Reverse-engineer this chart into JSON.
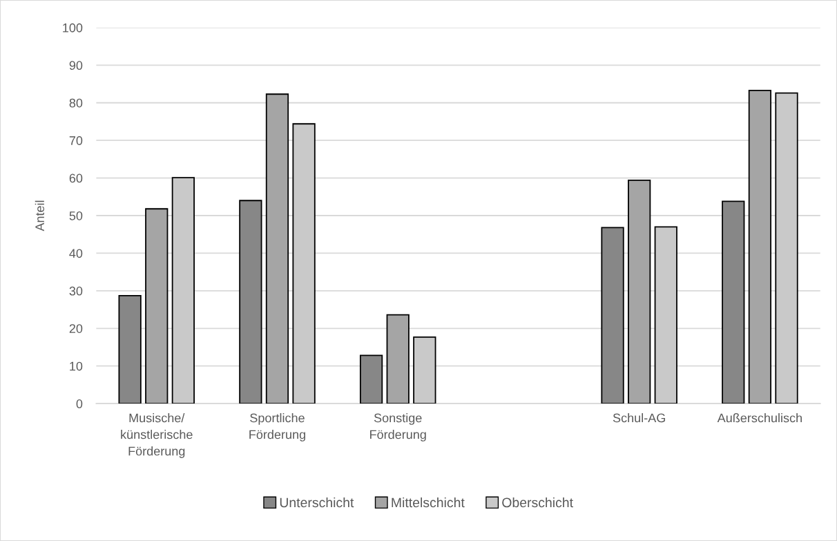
{
  "chart_data": {
    "type": "bar",
    "ylabel": "Anteil",
    "categories": [
      "Musische/\nkünstlerische\nFörderung",
      "Sportliche\nFörderung",
      "Sonstige\nFörderung",
      null,
      "Schul-AG",
      "Außerschulisch"
    ],
    "series": [
      {
        "name": "Unterschicht",
        "color": "#878787",
        "values": [
          28.7,
          54.0,
          12.8,
          null,
          46.8,
          53.8
        ]
      },
      {
        "name": "Mittelschicht",
        "color": "#a5a5a5",
        "values": [
          51.8,
          82.3,
          23.6,
          null,
          59.4,
          83.3
        ]
      },
      {
        "name": "Oberschicht",
        "color": "#c9c9c9",
        "values": [
          60.1,
          74.4,
          17.7,
          null,
          47.0,
          82.6
        ]
      }
    ],
    "ylim": [
      0,
      100
    ],
    "yticks": [
      0,
      10,
      20,
      30,
      40,
      50,
      60,
      70,
      80,
      90,
      100
    ],
    "grid": "y",
    "legend": "bottom"
  }
}
